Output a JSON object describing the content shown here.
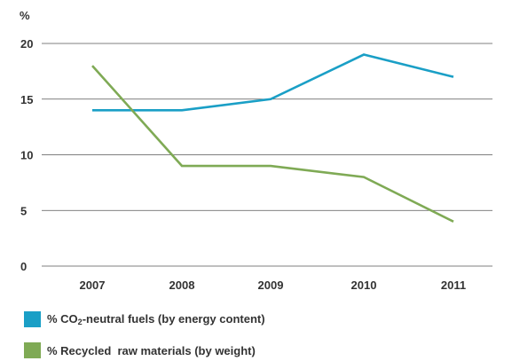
{
  "chart_data": {
    "type": "line",
    "categories": [
      "2007",
      "2008",
      "2009",
      "2010",
      "2011"
    ],
    "ylabel": "%",
    "ylim": [
      0,
      20
    ],
    "yticks": [
      0,
      5,
      10,
      15,
      20
    ],
    "grid": true,
    "legend_position": "bottom-left",
    "series": [
      {
        "name": "% CO2-neutral fuels (by energy content)",
        "name_parts": {
          "prefix": "% CO",
          "subscript": "2",
          "suffix": "-neutral fuels (by energy content)"
        },
        "color": "#1a9fc6",
        "values": [
          14,
          14,
          15,
          19,
          17
        ]
      },
      {
        "name": "% Recycled  raw materials (by weight)",
        "color": "#7faa55",
        "values": [
          18,
          9,
          9,
          8,
          4
        ]
      }
    ]
  }
}
